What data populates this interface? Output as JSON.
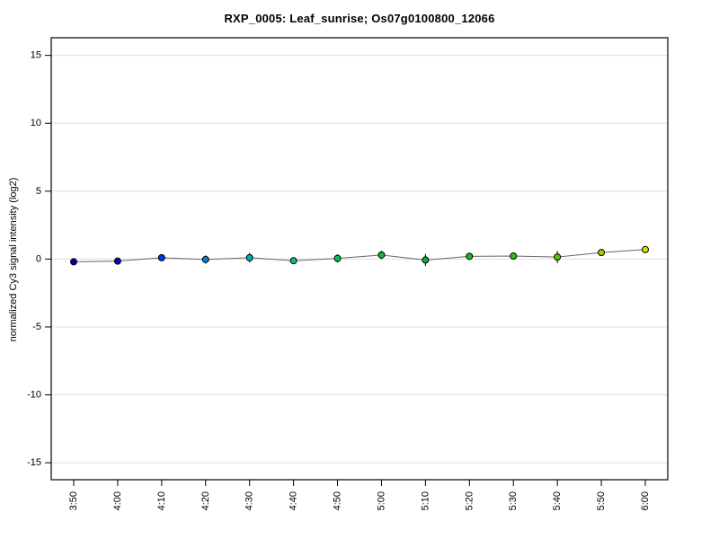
{
  "chart_data": {
    "type": "line",
    "title": "RXP_0005: Leaf_sunrise; Os07g0100800_12066",
    "ylabel": "normalized Cy3 signal intensity (log2)",
    "xlabel": "",
    "categories": [
      "3:50",
      "4:00",
      "4:10",
      "4:20",
      "4:30",
      "4:40",
      "4:50",
      "5:00",
      "5:10",
      "5:20",
      "5:30",
      "5:40",
      "5:50",
      "6:00"
    ],
    "values": [
      -0.2,
      -0.15,
      0.1,
      -0.03,
      0.1,
      -0.12,
      0.05,
      0.3,
      -0.07,
      0.2,
      0.22,
      0.15,
      0.48,
      0.7
    ],
    "errors": [
      0,
      0,
      0.2,
      0.3,
      0.35,
      0,
      0.3,
      0.3,
      0.45,
      0,
      0,
      0.45,
      0,
      0
    ],
    "point_colors": [
      "#0000A8",
      "#0000CD",
      "#0038E8",
      "#0080D8",
      "#00B4B4",
      "#00C488",
      "#00C464",
      "#00C040",
      "#00B830",
      "#14BC1C",
      "#2CC40C",
      "#54C800",
      "#A4D000",
      "#DCDC00"
    ],
    "ylim": [
      -16.25,
      16.3
    ],
    "yticks": [
      -15,
      -10,
      -5,
      0,
      5,
      10,
      15
    ],
    "grid": "horizontal",
    "legend": "none",
    "style": {
      "grid_color": "#e4e4e4",
      "line_color": "#666666",
      "box_color": "#333333",
      "tick_color": "#000000",
      "marker_edge": "#000000",
      "background": "#ffffff"
    }
  }
}
